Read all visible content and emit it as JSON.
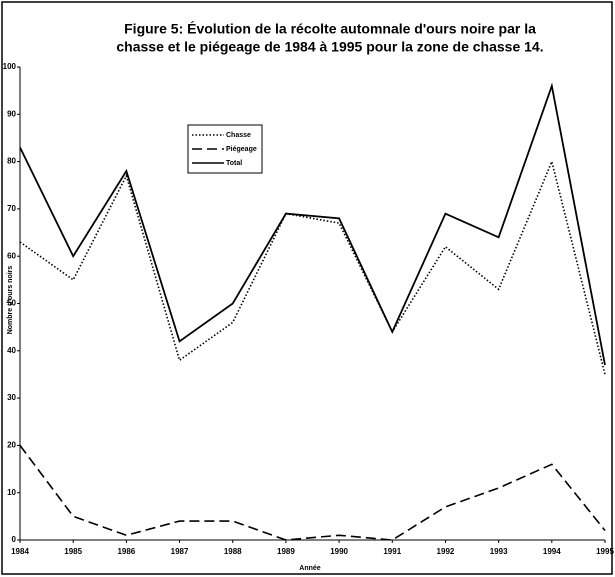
{
  "chart_data": {
    "type": "line",
    "title": [
      "Figure 5: Évolution de la récolte automnale d'ours noire par la",
      "chasse et le piégeage de 1984 à 1995 pour la zone de chasse 14."
    ],
    "x_label": "Année",
    "y_label": "Nombre d'ours noirs",
    "categories": [
      "1984",
      "1985",
      "1986",
      "1987",
      "1988",
      "1989",
      "1990",
      "1991",
      "1992",
      "1993",
      "1994",
      "1995"
    ],
    "series": [
      {
        "name": "Chasse",
        "color": "#000000",
        "dash": "dotted",
        "values": [
          63,
          55,
          77,
          38,
          46,
          69,
          67,
          44,
          62,
          53,
          80,
          35
        ]
      },
      {
        "name": "Piégeage",
        "color": "#000000",
        "dash": "dashed",
        "values": [
          20,
          5,
          1,
          4,
          4,
          0,
          1,
          0,
          7,
          11,
          16,
          2
        ]
      },
      {
        "name": "Total",
        "color": "#000000",
        "dash": "solid",
        "values": [
          83,
          60,
          78,
          42,
          50,
          69,
          68,
          44,
          69,
          64,
          96,
          37
        ]
      }
    ],
    "ylim": [
      0,
      100
    ],
    "yticks": [
      0,
      10,
      20,
      30,
      40,
      50,
      60,
      70,
      80,
      90,
      100
    ],
    "grid": false,
    "legend": "upper left"
  }
}
